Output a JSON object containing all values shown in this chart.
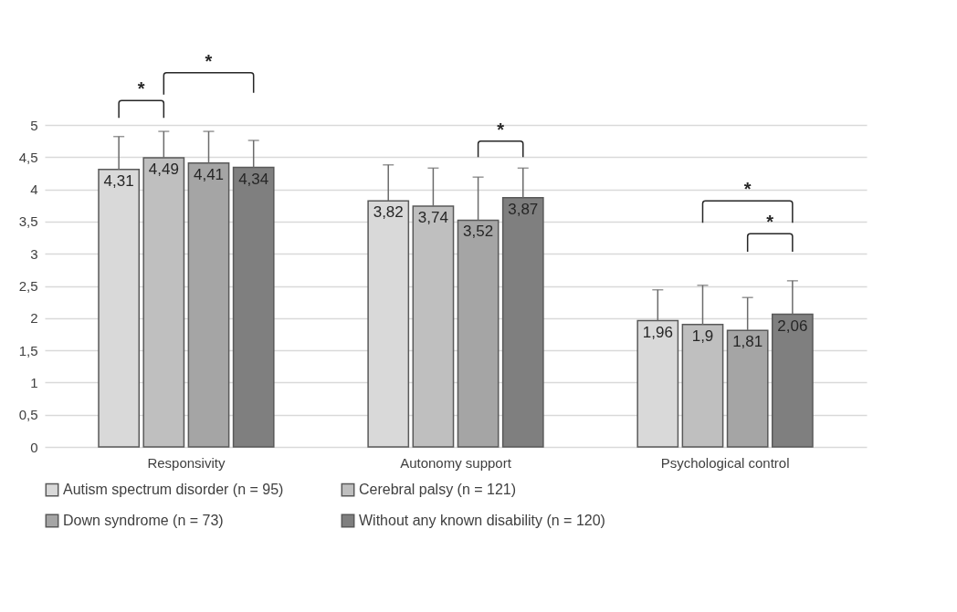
{
  "chart_data": {
    "type": "bar",
    "categories": [
      "Responsivity",
      "Autonomy support",
      "Psychological control"
    ],
    "series": [
      {
        "name": "Autism spectrum disorder (n = 95)",
        "color": "#d9d9d9",
        "values": [
          4.31,
          3.82,
          1.96
        ],
        "errors": [
          0.51,
          0.56,
          0.48
        ],
        "value_labels": [
          "4,31",
          "3,82",
          "1,96"
        ]
      },
      {
        "name": "Cerebral palsy (n = 121)",
        "color": "#bfbfbf",
        "values": [
          4.49,
          3.74,
          1.9
        ],
        "errors": [
          0.41,
          0.59,
          0.61
        ],
        "value_labels": [
          "4,49",
          "3,74",
          "1,9"
        ]
      },
      {
        "name": "Down syndrome (n = 73)",
        "color": "#a5a5a5",
        "values": [
          4.41,
          3.52,
          1.81
        ],
        "errors": [
          0.49,
          0.67,
          0.51
        ],
        "value_labels": [
          "4,41",
          "3,52",
          "1,81"
        ]
      },
      {
        "name": "Without any known disability (n = 120)",
        "color": "#7f7f7f",
        "values": [
          4.34,
          3.87,
          2.06
        ],
        "errors": [
          0.42,
          0.46,
          0.52
        ],
        "value_labels": [
          "4,34",
          "3,87",
          "2,06"
        ]
      }
    ],
    "ylim": [
      0,
      5
    ],
    "yticks": [
      0,
      {
        "value": 0.5,
        "label": "0,5"
      },
      1,
      {
        "value": 1.5,
        "label": "1,5"
      },
      2,
      {
        "value": 2.5,
        "label": "2,5"
      },
      3,
      {
        "value": 3.5,
        "label": "3,5"
      },
      4,
      {
        "value": 4.5,
        "label": "4,5"
      },
      5
    ],
    "grid": "y",
    "legend": "bottom",
    "annotations": [
      "*",
      "*",
      "*",
      "*",
      "*"
    ]
  }
}
